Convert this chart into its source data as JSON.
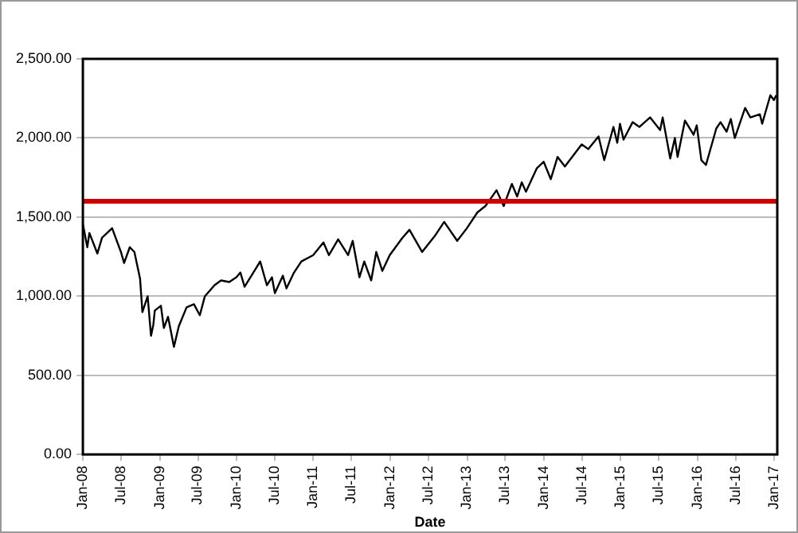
{
  "chart_data": {
    "type": "line",
    "xlabel": "Date",
    "x": [
      "2008-01-02",
      "2008-01-22",
      "2008-02-01",
      "2008-03-10",
      "2008-04-01",
      "2008-05-19",
      "2008-06-30",
      "2008-07-15",
      "2008-08-11",
      "2008-09-02",
      "2008-09-29",
      "2008-10-10",
      "2008-11-04",
      "2008-11-20",
      "2008-12-01",
      "2008-12-08",
      "2009-01-06",
      "2009-01-20",
      "2009-02-09",
      "2009-03-09",
      "2009-04-01",
      "2009-05-08",
      "2009-06-12",
      "2009-07-10",
      "2009-08-03",
      "2009-09-18",
      "2009-10-19",
      "2009-11-27",
      "2009-12-31",
      "2010-01-19",
      "2010-02-08",
      "2010-03-31",
      "2010-04-23",
      "2010-05-25",
      "2010-06-18",
      "2010-07-02",
      "2010-08-09",
      "2010-08-26",
      "2010-10-01",
      "2010-11-05",
      "2010-12-31",
      "2011-02-18",
      "2011-03-16",
      "2011-04-29",
      "2011-06-15",
      "2011-07-07",
      "2011-08-08",
      "2011-08-31",
      "2011-10-03",
      "2011-10-27",
      "2011-11-25",
      "2011-12-30",
      "2012-02-29",
      "2012-04-02",
      "2012-06-01",
      "2012-07-31",
      "2012-09-14",
      "2012-11-15",
      "2012-12-31",
      "2013-02-19",
      "2013-03-29",
      "2013-05-21",
      "2013-06-24",
      "2013-08-02",
      "2013-08-27",
      "2013-09-18",
      "2013-10-08",
      "2013-11-29",
      "2013-12-31",
      "2014-02-03",
      "2014-03-07",
      "2014-04-11",
      "2014-06-30",
      "2014-07-31",
      "2014-09-18",
      "2014-10-15",
      "2014-11-28",
      "2014-12-16",
      "2014-12-29",
      "2015-01-15",
      "2015-02-27",
      "2015-03-31",
      "2015-05-21",
      "2015-07-08",
      "2015-07-20",
      "2015-08-25",
      "2015-09-16",
      "2015-09-29",
      "2015-11-03",
      "2015-12-14",
      "2015-12-29",
      "2016-01-20",
      "2016-02-11",
      "2016-03-31",
      "2016-04-20",
      "2016-05-19",
      "2016-06-08",
      "2016-06-27",
      "2016-08-15",
      "2016-09-09",
      "2016-10-24",
      "2016-11-04",
      "2016-12-13",
      "2016-12-30",
      "2017-01-10"
    ],
    "series": [
      {
        "color": "#000000",
        "values": [
          1450,
          1310,
          1400,
          1270,
          1370,
          1430,
          1280,
          1210,
          1310,
          1280,
          1110,
          900,
          1000,
          750,
          820,
          910,
          940,
          800,
          870,
          680,
          810,
          930,
          950,
          880,
          1000,
          1070,
          1100,
          1090,
          1120,
          1150,
          1060,
          1170,
          1220,
          1070,
          1120,
          1020,
          1130,
          1050,
          1150,
          1220,
          1260,
          1340,
          1260,
          1360,
          1260,
          1350,
          1120,
          1220,
          1100,
          1280,
          1160,
          1260,
          1370,
          1420,
          1280,
          1380,
          1470,
          1350,
          1430,
          1530,
          1570,
          1670,
          1570,
          1710,
          1630,
          1720,
          1660,
          1810,
          1850,
          1740,
          1880,
          1820,
          1960,
          1930,
          2010,
          1860,
          2070,
          1970,
          2090,
          1990,
          2100,
          2070,
          2130,
          2050,
          2130,
          1870,
          2000,
          1880,
          2110,
          2020,
          2080,
          1860,
          1830,
          2060,
          2100,
          2040,
          2120,
          2000,
          2190,
          2130,
          2150,
          2090,
          2270,
          2240,
          2270
        ]
      }
    ],
    "xlim": [
      "2008-01-01",
      "2017-01-15"
    ],
    "xticks": [
      {
        "value": "2008-01-01",
        "label": "Jan-08"
      },
      {
        "value": "2008-07-01",
        "label": "Jul-08"
      },
      {
        "value": "2009-01-01",
        "label": "Jan-09"
      },
      {
        "value": "2009-07-01",
        "label": "Jul-09"
      },
      {
        "value": "2010-01-01",
        "label": "Jan-10"
      },
      {
        "value": "2010-07-01",
        "label": "Jul-10"
      },
      {
        "value": "2011-01-01",
        "label": "Jan-11"
      },
      {
        "value": "2011-07-01",
        "label": "Jul-11"
      },
      {
        "value": "2012-01-01",
        "label": "Jan-12"
      },
      {
        "value": "2012-07-01",
        "label": "Jul-12"
      },
      {
        "value": "2013-01-01",
        "label": "Jan-13"
      },
      {
        "value": "2013-07-01",
        "label": "Jul-13"
      },
      {
        "value": "2014-01-01",
        "label": "Jan-14"
      },
      {
        "value": "2014-07-01",
        "label": "Jul-14"
      },
      {
        "value": "2015-01-01",
        "label": "Jan-15"
      },
      {
        "value": "2015-07-01",
        "label": "Jul-15"
      },
      {
        "value": "2016-01-01",
        "label": "Jan-16"
      },
      {
        "value": "2016-07-01",
        "label": "Jul-16"
      },
      {
        "value": "2017-01-01",
        "label": "Jan-17"
      }
    ],
    "ylim": [
      0,
      2500
    ],
    "yticks": [
      {
        "value": 0,
        "label": "0.00"
      },
      {
        "value": 500,
        "label": "500.00"
      },
      {
        "value": 1000,
        "label": "1,000.00"
      },
      {
        "value": 1500,
        "label": "1,500.00"
      },
      {
        "value": 2000,
        "label": "2,000.00"
      },
      {
        "value": 2500,
        "label": "2,500.00"
      }
    ],
    "ref_lines": [
      {
        "axis": "y",
        "value": 1600,
        "color": "#cc0000"
      }
    ],
    "grid": "y",
    "legend": false,
    "marker": "none",
    "line_style": "solid"
  }
}
